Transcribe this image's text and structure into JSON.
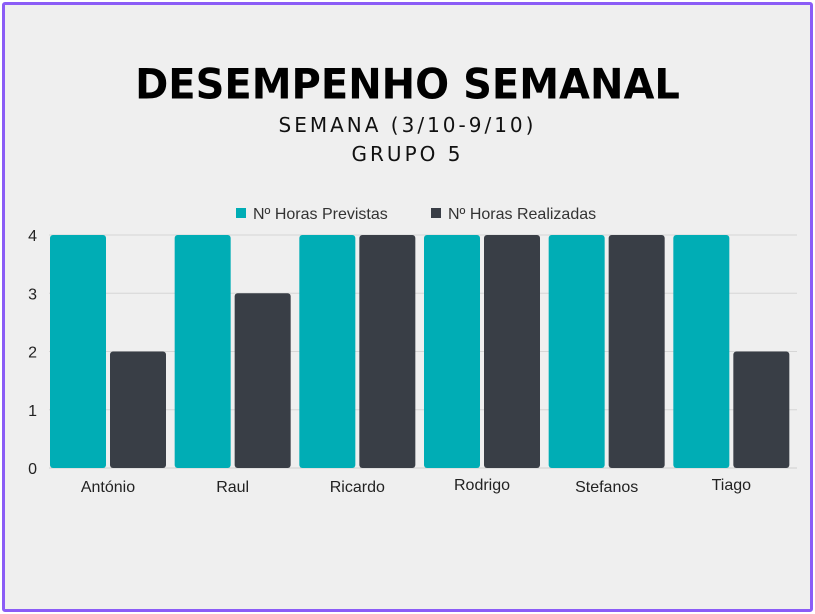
{
  "chart_data": {
    "type": "bar",
    "title": "DESEMPENHO SEMANAL",
    "subtitle_lines": [
      "SEMANA (3/10-9/10)",
      "GRUPO 5"
    ],
    "categories": [
      "António",
      "Raul",
      "Ricardo",
      "Rodrigo",
      "Stefanos",
      "Tiago"
    ],
    "series": [
      {
        "name": "Nº Horas Previstas",
        "color": "#00adb5",
        "values": [
          4,
          4,
          4,
          4,
          4,
          4
        ]
      },
      {
        "name": "Nº Horas Realizadas",
        "color": "#393e46",
        "values": [
          2,
          3,
          4,
          4,
          4,
          2
        ]
      }
    ],
    "ylim": [
      0,
      4
    ],
    "yticks": [
      0,
      1,
      2,
      3,
      4
    ],
    "grid": true,
    "legend_position": "top-center"
  }
}
